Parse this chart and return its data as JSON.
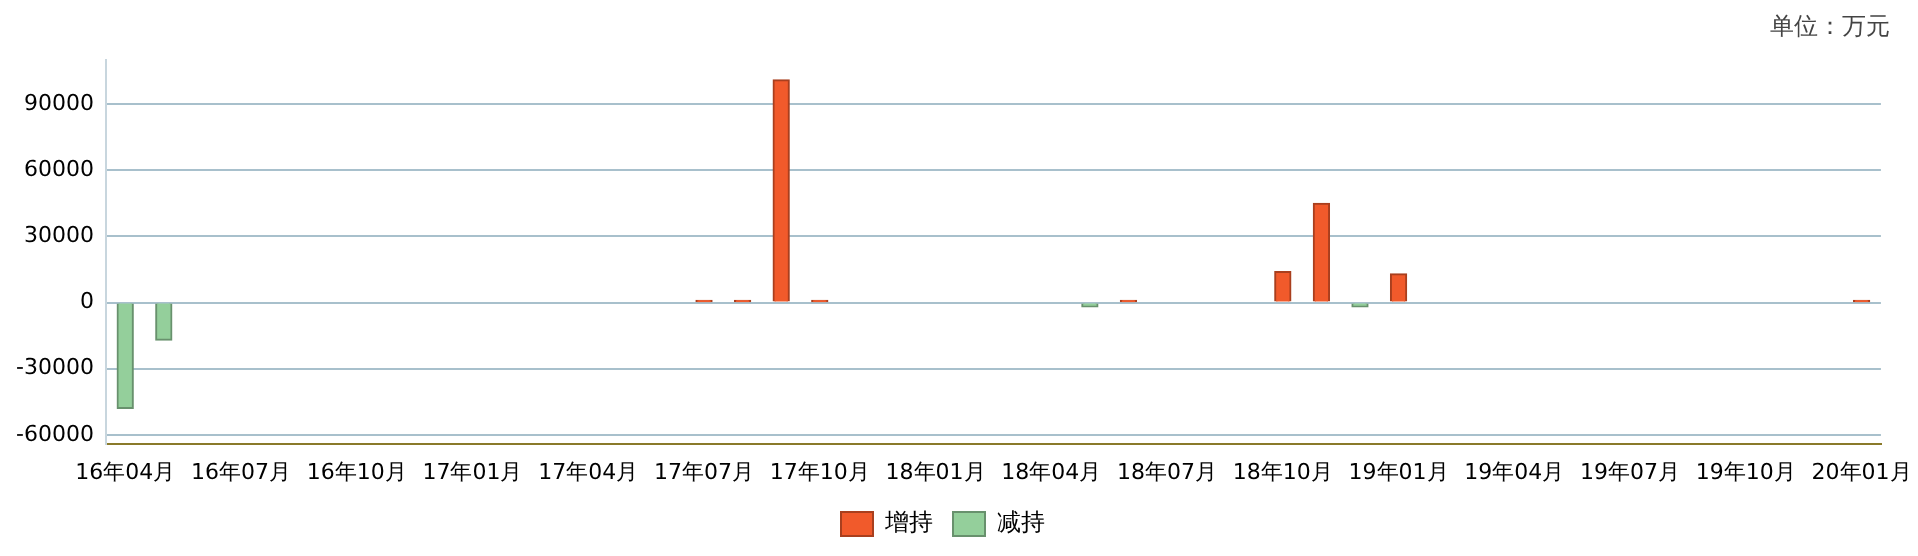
{
  "chart_data": {
    "type": "bar",
    "annotations": [
      "单位：万元"
    ],
    "categories": [
      "16年04月",
      null,
      null,
      "16年07月",
      null,
      null,
      "16年10月",
      null,
      null,
      "17年01月",
      null,
      null,
      "17年04月",
      null,
      null,
      "17年07月",
      null,
      null,
      "17年10月",
      null,
      null,
      "18年01月",
      null,
      null,
      "18年04月",
      null,
      null,
      "18年07月",
      null,
      null,
      "18年10月",
      null,
      null,
      "19年01月",
      null,
      null,
      "19年04月",
      null,
      null,
      "19年07月",
      null,
      null,
      "19年10月",
      null,
      null,
      "20年01月"
    ],
    "series": [
      {
        "name": "增持",
        "color": "#f15a2b",
        "values": [
          null,
          null,
          null,
          null,
          null,
          null,
          null,
          null,
          null,
          null,
          null,
          null,
          null,
          null,
          null,
          1000,
          1000,
          101000,
          1000,
          null,
          null,
          null,
          null,
          null,
          null,
          null,
          1000,
          null,
          null,
          null,
          14000,
          45000,
          null,
          13000,
          null,
          null,
          null,
          null,
          null,
          null,
          null,
          null,
          null,
          null,
          null,
          1000
        ]
      },
      {
        "name": "减持",
        "color": "#94cf9b",
        "values": [
          -48000,
          -17000,
          null,
          null,
          null,
          null,
          null,
          null,
          null,
          null,
          null,
          null,
          null,
          null,
          null,
          null,
          null,
          null,
          null,
          null,
          null,
          null,
          null,
          null,
          null,
          -2000,
          null,
          null,
          null,
          null,
          null,
          null,
          -2000,
          null,
          null,
          null,
          null,
          null,
          null,
          null,
          null,
          null,
          null,
          null,
          null,
          null
        ]
      }
    ],
    "ylim": [
      -64000,
      110000
    ],
    "yticks": [
      -60000,
      -30000,
      0,
      30000,
      60000,
      90000
    ],
    "grid": "y",
    "legend": "bottom"
  }
}
